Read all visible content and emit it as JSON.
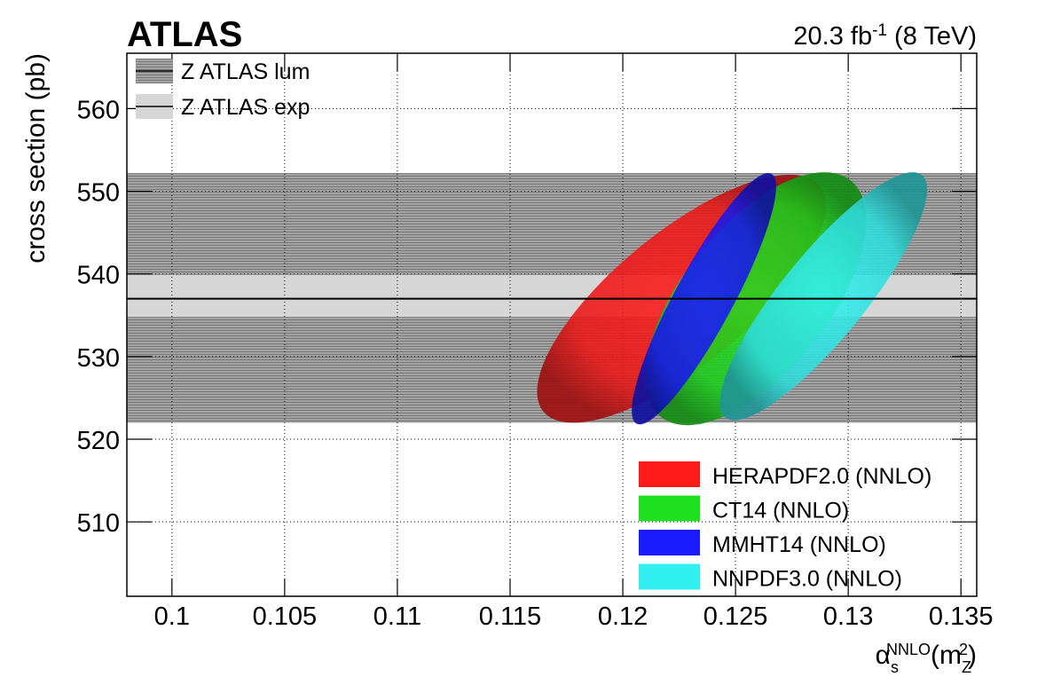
{
  "chart_data": {
    "type": "ellipse",
    "title": "ATLAS",
    "lumi_parts": [
      "20.3 fb",
      "-1",
      " (8 TeV)"
    ],
    "y_label": "cross section (pb)",
    "x_label_parts": [
      "α",
      "s",
      "NNLO",
      "(m",
      "Z",
      "2",
      ")"
    ],
    "xlim": [
      0.098,
      0.1357
    ],
    "ylim": [
      501,
      566.7
    ],
    "xticks": [
      0.1,
      0.105,
      0.11,
      0.115,
      0.12,
      0.125,
      0.13,
      0.135
    ],
    "yticks": [
      510,
      520,
      530,
      540,
      550,
      560
    ],
    "grid": true,
    "legend": "lower right",
    "central_value": 537,
    "bands": [
      {
        "name": "Z ATLAS lum",
        "lo": 522,
        "hi": 552.2,
        "color": "#a3a3a3"
      },
      {
        "name": "Z ATLAS exp",
        "lo": 534.8,
        "hi": 539.9,
        "color": "#d6d6d6"
      }
    ],
    "series": [
      {
        "name": "HERAPDF2.0 (NNLO)",
        "color": "#ff1a1a",
        "cx": 0.1226,
        "cy": 537,
        "sx": 0.0064,
        "sy": 15,
        "rho": 0.75
      },
      {
        "name": "CT14 (NNLO)",
        "color": "#1fe01f",
        "cx": 0.1259,
        "cy": 537,
        "sx": 0.0049,
        "sy": 15.3,
        "rho": 0.62
      },
      {
        "name": "MMHT14 (NNLO)",
        "color": "#1a1aff",
        "cx": 0.1236,
        "cy": 537,
        "sx": 0.0032,
        "sy": 15.2,
        "rho": 0.89
      },
      {
        "name": "NNPDF3.0 (NNLO)",
        "color": "#33f0f0",
        "cx": 0.1289,
        "cy": 537.3,
        "sx": 0.0046,
        "sy": 15,
        "rho": 0.86
      }
    ]
  }
}
